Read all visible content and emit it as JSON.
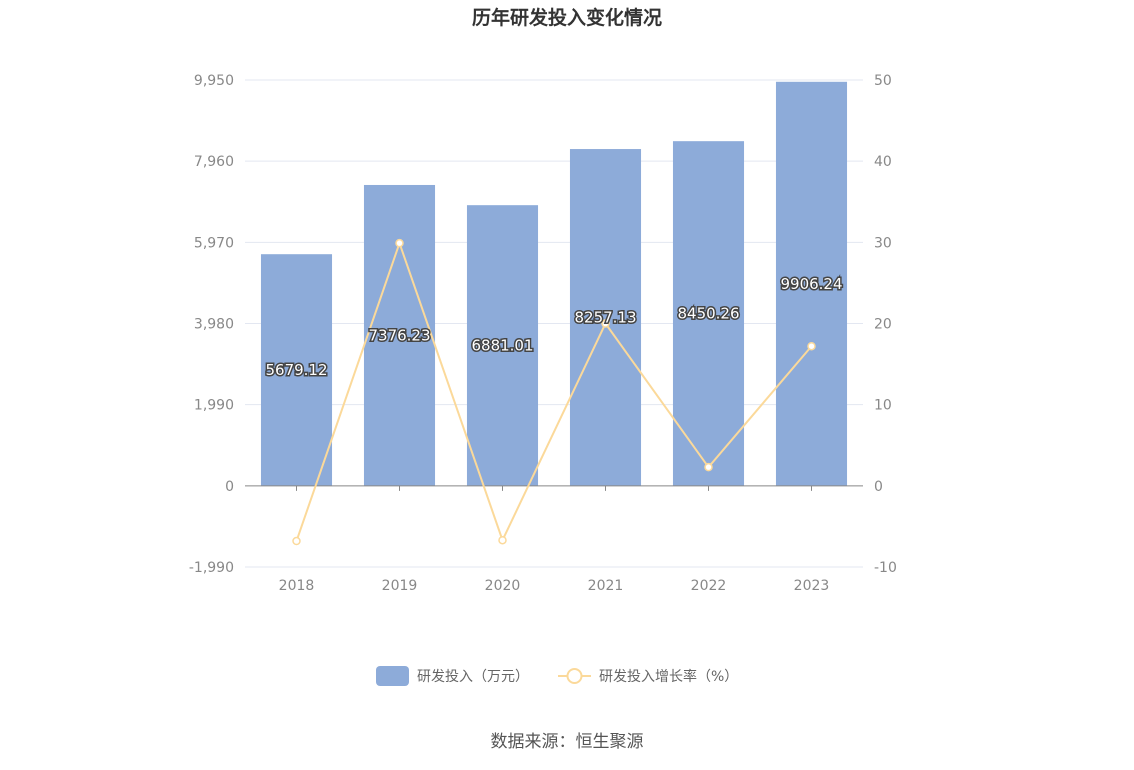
{
  "chart_data": {
    "type": "bar",
    "title": "历年研发投入变化情况",
    "categories": [
      "2018",
      "2019",
      "2020",
      "2021",
      "2022",
      "2023"
    ],
    "series": [
      {
        "name": "研发投入（万元）",
        "type": "bar",
        "axis": "left",
        "color": "#8dabd9",
        "values": [
          5679.12,
          7376.23,
          6881.01,
          8257.13,
          8450.26,
          9906.24
        ],
        "labels": [
          "5679.12",
          "7376.23",
          "6881.01",
          "8257.13",
          "8450.26",
          "9906.24"
        ]
      },
      {
        "name": "研发投入增长率（%）",
        "type": "line",
        "axis": "right",
        "color": "#fbd99a",
        "values": [
          -6.8,
          29.9,
          -6.7,
          20.0,
          2.3,
          17.2
        ]
      }
    ],
    "y_left": {
      "ticks": [
        -1990,
        0,
        1990,
        3980,
        5970,
        7960,
        9950
      ],
      "tick_labels": [
        "-1,990",
        "0",
        "1,990",
        "3,980",
        "5,970",
        "7,960",
        "9,950"
      ],
      "ylim": [
        -1990,
        9950
      ]
    },
    "y_right": {
      "ticks": [
        -10,
        0,
        10,
        20,
        30,
        40,
        50
      ],
      "tick_labels": [
        "-10",
        "0",
        "10",
        "20",
        "30",
        "40",
        "50"
      ],
      "ylim": [
        -10,
        50
      ]
    },
    "grid": true,
    "legend_position": "bottom"
  },
  "source": "数据来源：恒生聚源"
}
